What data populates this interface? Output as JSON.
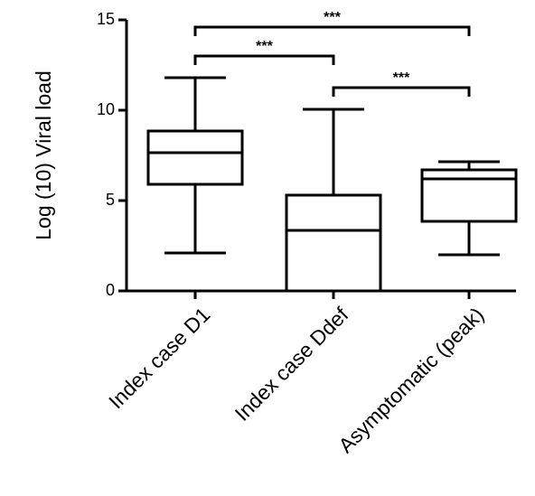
{
  "chart_data": {
    "type": "boxplot",
    "ylabel": "Log (10) Viral load",
    "ylim": [
      0,
      15
    ],
    "yticks": [
      {
        "value": 0,
        "label": "0"
      },
      {
        "value": 5,
        "label": "5"
      },
      {
        "value": 10,
        "label": "10"
      },
      {
        "value": 15,
        "label": "15"
      }
    ],
    "categories": [
      "Index case D1",
      "Index case Ddef",
      "Asymptomatic (peak)"
    ],
    "boxes": [
      {
        "min": 2.1,
        "q1": 5.9,
        "median": 7.65,
        "q3": 8.85,
        "max": 11.8
      },
      {
        "min": 0.0,
        "q1": 0.0,
        "median": 3.35,
        "q3": 5.3,
        "max": 10.05
      },
      {
        "min": 2.0,
        "q1": 3.85,
        "median": 6.2,
        "q3": 6.7,
        "max": 7.15
      }
    ],
    "comparisons": [
      {
        "from": 0,
        "to": 2,
        "y": 14.6,
        "label": "***"
      },
      {
        "from": 0,
        "to": 1,
        "y": 13.0,
        "label": "***"
      },
      {
        "from": 1,
        "to": 2,
        "y": 11.25,
        "label": "***"
      }
    ],
    "grid": false,
    "legend": "none"
  }
}
